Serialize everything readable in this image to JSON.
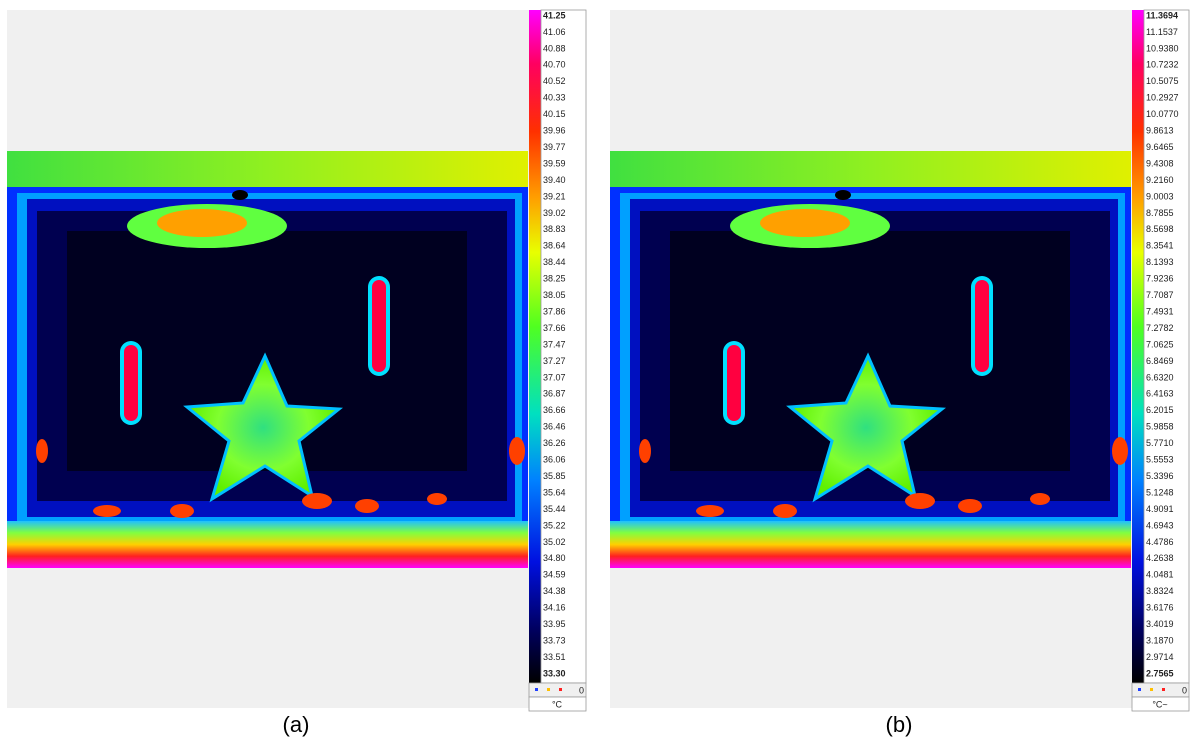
{
  "panels": [
    {
      "caption": "(a)",
      "scale": [
        "41.25",
        "41.06",
        "40.88",
        "40.70",
        "40.52",
        "40.33",
        "40.15",
        "39.96",
        "39.77",
        "39.59",
        "39.40",
        "39.21",
        "39.02",
        "38.83",
        "38.64",
        "38.44",
        "38.25",
        "38.05",
        "37.86",
        "37.66",
        "37.47",
        "37.27",
        "37.07",
        "36.87",
        "36.66",
        "36.46",
        "36.26",
        "36.06",
        "35.85",
        "35.64",
        "35.44",
        "35.22",
        "35.02",
        "34.80",
        "34.59",
        "34.38",
        "34.16",
        "33.95",
        "33.73",
        "33.51",
        "33.30"
      ],
      "counter": "0",
      "unit": "°C"
    },
    {
      "caption": "(b)",
      "scale": [
        "11.3694",
        "11.1537",
        "10.9380",
        "10.7232",
        "10.5075",
        "10.2927",
        "10.0770",
        "9.8613",
        "9.6465",
        "9.4308",
        "9.2160",
        "9.0003",
        "8.7855",
        "8.5698",
        "8.3541",
        "8.1393",
        "7.9236",
        "7.7087",
        "7.4931",
        "7.2782",
        "7.0625",
        "6.8469",
        "6.6320",
        "6.4163",
        "6.2015",
        "5.9858",
        "5.7710",
        "5.5553",
        "5.3396",
        "5.1248",
        "4.9091",
        "4.6943",
        "4.4786",
        "4.2638",
        "4.0481",
        "3.8324",
        "3.6176",
        "3.4019",
        "3.1870",
        "2.9714",
        "2.7565"
      ],
      "counter": "0",
      "unit": "°C~"
    }
  ]
}
